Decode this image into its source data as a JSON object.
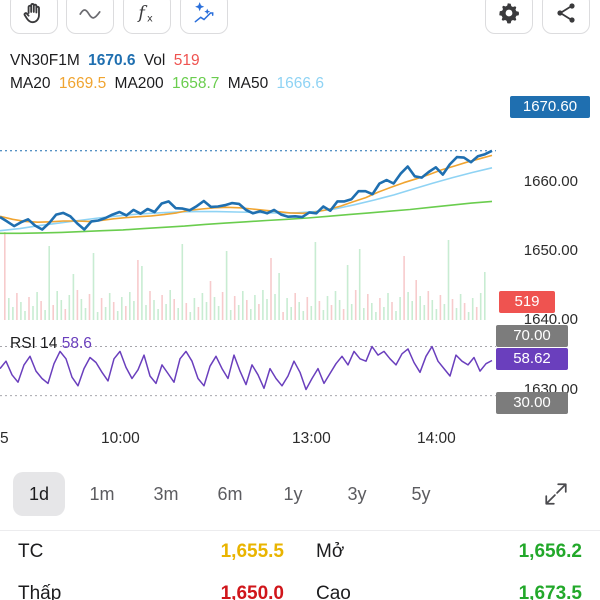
{
  "toolbar": {
    "left_icons": [
      "hand-icon",
      "line-icon",
      "function-icon",
      "ai-sparkle-icon"
    ],
    "right_icons": [
      "gear-icon",
      "share-icon"
    ]
  },
  "legend": {
    "symbol": "VN30F1M",
    "price": "1670.6",
    "vol_label": "Vol",
    "vol_value": "519",
    "ma20_label": "MA20",
    "ma20_value": "1669.5",
    "ma200_label": "MA200",
    "ma200_value": "1658.7",
    "ma50_label": "MA50",
    "ma50_value": "1666.6"
  },
  "colors": {
    "price_line": "#1f6fb0",
    "ma20": "#f0a430",
    "ma200": "#6acd4e",
    "ma50": "#8fd3f4",
    "rsi": "#6a3fbd",
    "vol_up": "#c8ecd2",
    "vol_down": "#f7cbcc",
    "price_tag": "#1f6fb0",
    "vol_tag": "#ef5350",
    "rsi_tag": "#6a3fbd",
    "level_tag": "#7c7c7c",
    "value_yellow": "#e9b400",
    "value_red": "#d0161b",
    "value_green": "#22a82a"
  },
  "chart_data": {
    "type": "line",
    "x_ticks": [
      "5",
      "10:00",
      "13:00",
      "14:00"
    ],
    "y_ticks": [
      "1670.60",
      "1660.00",
      "1650.00",
      "1640.00",
      "1630.00"
    ],
    "ylim": [
      1628,
      1683
    ],
    "last_price": 1670.6,
    "series": [
      {
        "name": "VN30F1M",
        "values": [
          1655.0,
          1654.0,
          1652.9,
          1653.8,
          1654.5,
          1653.0,
          1652.1,
          1653.6,
          1655.6,
          1656.0,
          1655.2,
          1653.5,
          1652.1,
          1654.0,
          1654.2,
          1654.8,
          1655.6,
          1656.2,
          1655.4,
          1656.7,
          1655.8,
          1656.9,
          1656.2,
          1658.2,
          1658.7,
          1657.1,
          1657.0,
          1656.6,
          1657.6,
          1658.8,
          1657.4,
          1657.5,
          1657.8,
          1658.3,
          1658.1,
          1656.7,
          1655.9,
          1656.4,
          1655.9,
          1656.7,
          1655.6,
          1655.1,
          1655.2,
          1655.0,
          1656.1,
          1655.9,
          1657.5,
          1656.5,
          1658.7,
          1658.7,
          1659.2,
          1661.1,
          1661.1,
          1660.4,
          1662.9,
          1663.7,
          1662.9,
          1665.2,
          1666.9,
          1664.6,
          1664.3,
          1665.6,
          1666.7,
          1665.0,
          1667.4,
          1669.1,
          1669.0,
          1667.9,
          1669.3,
          1669.8,
          1670.6
        ]
      },
      {
        "name": "MA20",
        "values": [
          1655.2,
          1654.5,
          1654.0,
          1653.8,
          1653.9,
          1654.1,
          1654.1,
          1654.0,
          1654.2,
          1654.6,
          1654.9,
          1655.1,
          1655.3,
          1655.6,
          1656.0,
          1656.6,
          1656.9,
          1657.2,
          1657.3,
          1657.2,
          1656.9,
          1656.6,
          1656.3,
          1656.0,
          1655.9,
          1656.2,
          1656.8,
          1657.6,
          1658.6,
          1659.6,
          1660.9,
          1662.0,
          1663.1,
          1664.0,
          1665.0,
          1666.1,
          1667.0,
          1667.9,
          1668.7,
          1669.5
        ]
      },
      {
        "name": "MA200",
        "values": [
          1651.2,
          1651.2,
          1651.3,
          1651.4,
          1651.6,
          1651.8,
          1652.0,
          1652.3,
          1652.6,
          1652.9,
          1653.3,
          1653.6,
          1653.9,
          1654.2,
          1654.5,
          1654.8,
          1655.2,
          1655.6,
          1656.0,
          1656.4,
          1656.8,
          1657.3,
          1657.8,
          1658.3,
          1658.7
        ]
      },
      {
        "name": "MA50",
        "values": [
          1651.8,
          1652.3,
          1653.0,
          1653.6,
          1654.2,
          1654.8,
          1655.3,
          1655.7,
          1656.0,
          1656.2,
          1656.3,
          1656.3,
          1656.2,
          1656.1,
          1656.0,
          1656.0,
          1656.3,
          1656.9,
          1657.9,
          1659.0,
          1660.2,
          1661.6,
          1663.0,
          1664.3,
          1665.5,
          1666.6
        ]
      }
    ],
    "volume_tag": "519",
    "rsi": {
      "label": "RSI 14",
      "value": "58.6",
      "tag": "58.62",
      "levels": [
        "70.00",
        "30.00"
      ],
      "ylim": [
        20,
        85
      ],
      "values": [
        52,
        58,
        47,
        41,
        55,
        62,
        50,
        44,
        40,
        56,
        66,
        60,
        45,
        38,
        52,
        61,
        57,
        49,
        42,
        60,
        66,
        53,
        44,
        51,
        63,
        46,
        40,
        55,
        48,
        41,
        60,
        66,
        58,
        44,
        38,
        54,
        62,
        52,
        44,
        63,
        50,
        39,
        55,
        47,
        36,
        52,
        44,
        38,
        46,
        58,
        49,
        35,
        44,
        52,
        40,
        48,
        56,
        62,
        55,
        66,
        60,
        58,
        70,
        63,
        66,
        60,
        55,
        64,
        68,
        57,
        49,
        62,
        70,
        58,
        52,
        46,
        63,
        58,
        55,
        61,
        50,
        56,
        58.6
      ]
    }
  },
  "ranges": {
    "tabs": [
      "1d",
      "1m",
      "3m",
      "6m",
      "1y",
      "3y",
      "5y"
    ],
    "active": "1d"
  },
  "stats": {
    "tc_label": "TC",
    "tc_value": "1,655.5",
    "open_label": "Mở",
    "open_value": "1,656.2",
    "low_label": "Thấp",
    "low_value": "1,650.0",
    "high_label": "Cao",
    "high_value": "1,673.5"
  }
}
